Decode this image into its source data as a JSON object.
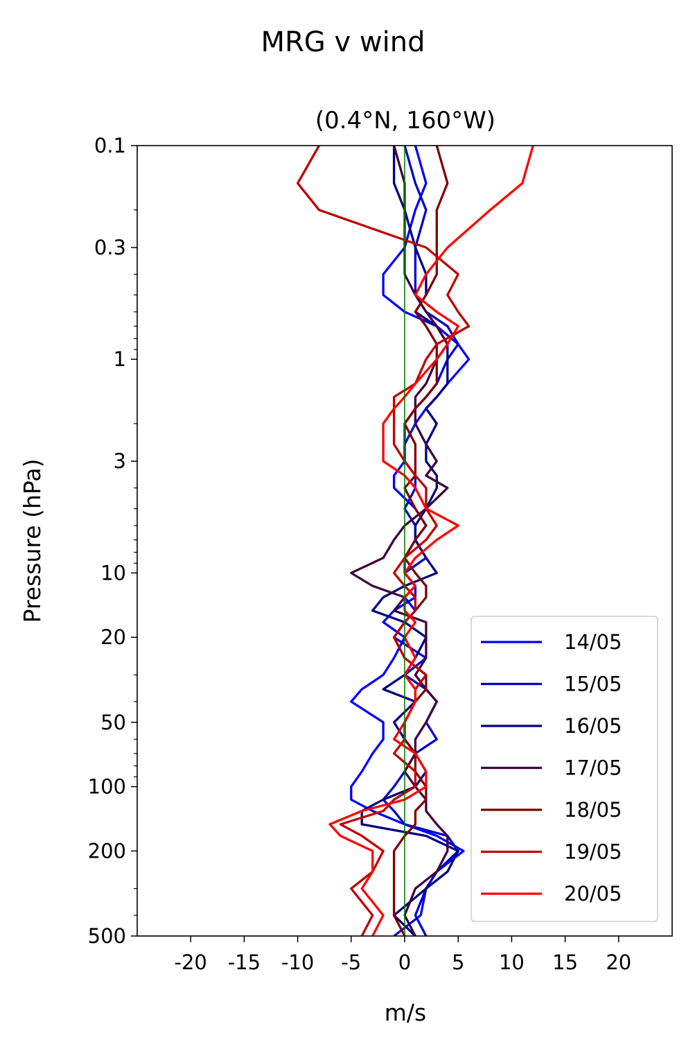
{
  "figure": {
    "suptitle": "MRG v wind"
  },
  "chart_data": {
    "type": "line",
    "orientation": "vertical-profile",
    "title": "(0.4°N, 160°W)",
    "xlabel": "m/s",
    "ylabel": "Pressure (hPa)",
    "xlim": [
      -25,
      25
    ],
    "ylim": [
      500,
      0.1
    ],
    "yscale": "log",
    "grid": false,
    "legend_position": "lower-right",
    "xticks": [
      -20,
      -15,
      -10,
      -5,
      0,
      5,
      10,
      15,
      20
    ],
    "xtick_labels": [
      "-20",
      "-15",
      "-10",
      "-5",
      "0",
      "5",
      "10",
      "15",
      "20"
    ],
    "yticks": [
      0.1,
      0.3,
      1,
      3,
      10,
      20,
      50,
      100,
      200,
      500
    ],
    "ytick_labels": [
      "0.1",
      "0.3",
      "1",
      "3",
      "10",
      "20",
      "50",
      "100",
      "200",
      "500"
    ],
    "reference_line": {
      "x": 0,
      "color": "#008000"
    },
    "pressure_levels": [
      500,
      400,
      300,
      250,
      200,
      170,
      150,
      130,
      115,
      100,
      85,
      70,
      60,
      50,
      40,
      35,
      30,
      25,
      20,
      17,
      15,
      13,
      11.5,
      10,
      8.5,
      7,
      6,
      5,
      4,
      3.5,
      3,
      2.5,
      2,
      1.7,
      1.5,
      1.3,
      1,
      0.85,
      0.7,
      0.6,
      0.5,
      0.4,
      0.3,
      0.2,
      0.15,
      0.1
    ],
    "series": [
      {
        "name": "14/05",
        "color": "#0000ff",
        "values": [
          -1,
          1.5,
          2,
          3,
          5.5,
          3,
          0,
          -3,
          -5,
          -5,
          -4,
          -3,
          -2,
          -2,
          -5,
          -4,
          -2,
          -1,
          0,
          -2,
          -1,
          1,
          1,
          0,
          0,
          1,
          2,
          1,
          -1,
          -1,
          0,
          0,
          1,
          2,
          3,
          4,
          6,
          5,
          3,
          0,
          -2,
          -2,
          0,
          1,
          2,
          1
        ]
      },
      {
        "name": "15/05",
        "color": "#0000cd",
        "values": [
          2,
          1,
          2,
          3,
          5,
          4,
          0,
          -1,
          -2,
          -1,
          0,
          1,
          3,
          2,
          3,
          2,
          0,
          2,
          -1,
          0,
          1,
          0,
          1,
          0,
          2,
          1,
          1,
          0,
          1,
          1,
          0,
          0,
          0,
          1,
          2,
          3,
          4,
          5,
          4,
          2,
          1,
          1,
          1,
          2,
          1,
          0
        ]
      },
      {
        "name": "16/05",
        "color": "#00007f",
        "values": [
          1,
          -1,
          2,
          4,
          5,
          2,
          -4,
          -4,
          -2,
          1,
          2,
          1,
          0,
          -1,
          1,
          -2,
          0,
          1,
          2,
          0,
          -3,
          -2,
          0,
          3,
          2,
          1,
          1,
          2,
          3,
          3,
          2,
          2,
          3,
          2,
          3,
          4,
          4,
          4,
          3,
          1,
          2,
          2,
          1,
          0,
          -1,
          -1
        ]
      },
      {
        "name": "17/05",
        "color": "#3f003f",
        "values": [
          1,
          0,
          1,
          3,
          4,
          4,
          3,
          2,
          2,
          1,
          0,
          1,
          1,
          2,
          3,
          2,
          1,
          2,
          2,
          2,
          -1,
          0,
          -3,
          -5,
          -2,
          -1,
          0,
          2,
          4,
          2,
          3,
          2,
          1,
          1,
          1,
          2,
          3,
          4,
          3,
          2,
          1,
          0,
          0,
          0,
          0,
          -1
        ]
      },
      {
        "name": "18/05",
        "color": "#7f0000",
        "values": [
          0,
          -1,
          -1,
          -1,
          -1,
          0,
          1,
          1,
          2,
          2,
          1,
          1,
          0,
          0,
          1,
          2,
          2,
          0,
          -1,
          0,
          1,
          2,
          2,
          1,
          0,
          1,
          2,
          1,
          0,
          1,
          1,
          1,
          0,
          1,
          2,
          3,
          3,
          3,
          2,
          1,
          2,
          3,
          3,
          3,
          4,
          3
        ]
      },
      {
        "name": "19/05",
        "color": "#bf0000",
        "values": [
          -4,
          -3,
          -5,
          -3,
          -2,
          -4,
          -6,
          -2,
          -1,
          1,
          1,
          -1,
          0,
          0,
          1,
          1,
          2,
          0,
          -1,
          0,
          1,
          1,
          0,
          -1,
          0,
          2,
          3,
          2,
          2,
          1,
          0,
          -1,
          -1,
          -1,
          -1,
          1,
          2,
          3,
          6,
          5,
          4,
          5,
          2,
          -8,
          -10,
          -8
        ]
      },
      {
        "name": "20/05",
        "color": "#ff0000",
        "values": [
          -3,
          -2,
          -4,
          -3,
          -3,
          -6,
          -7,
          -4,
          0,
          2,
          2,
          1,
          -1,
          0,
          1,
          1,
          0,
          1,
          0,
          1,
          0,
          0,
          1,
          0,
          1,
          3,
          5,
          2,
          1,
          0,
          -2,
          -2,
          -2,
          -1,
          0,
          1,
          3,
          4,
          5,
          3,
          1,
          2,
          4,
          8,
          11,
          12
        ]
      }
    ]
  }
}
